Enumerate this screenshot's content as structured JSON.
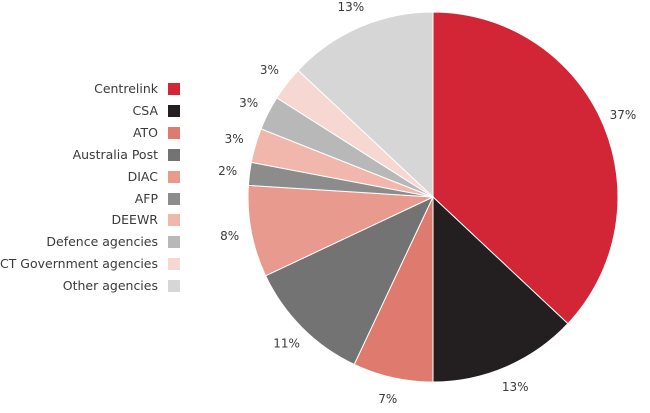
{
  "chart_data": {
    "type": "pie",
    "categories": [
      "Centrelink",
      "CSA",
      "ATO",
      "Australia Post",
      "DIAC",
      "AFP",
      "DEEWR",
      "Defence agencies",
      "ACT Government agencies",
      "Other agencies"
    ],
    "values": [
      37,
      13,
      7,
      11,
      8,
      2,
      3,
      3,
      3,
      13
    ],
    "labels": [
      "37%",
      "13%",
      "7%",
      "11%",
      "8%",
      "2%",
      "3%",
      "3%",
      "3%",
      "13%"
    ],
    "colors": [
      "#d22536",
      "#231f20",
      "#df7b6e",
      "#737373",
      "#e99a8e",
      "#8c8c8c",
      "#f1b7ad",
      "#b8b8b8",
      "#f6d7d2",
      "#d6d6d6"
    ],
    "start_angle_deg": 0,
    "direction": "clockwise",
    "legend_position": "left"
  }
}
